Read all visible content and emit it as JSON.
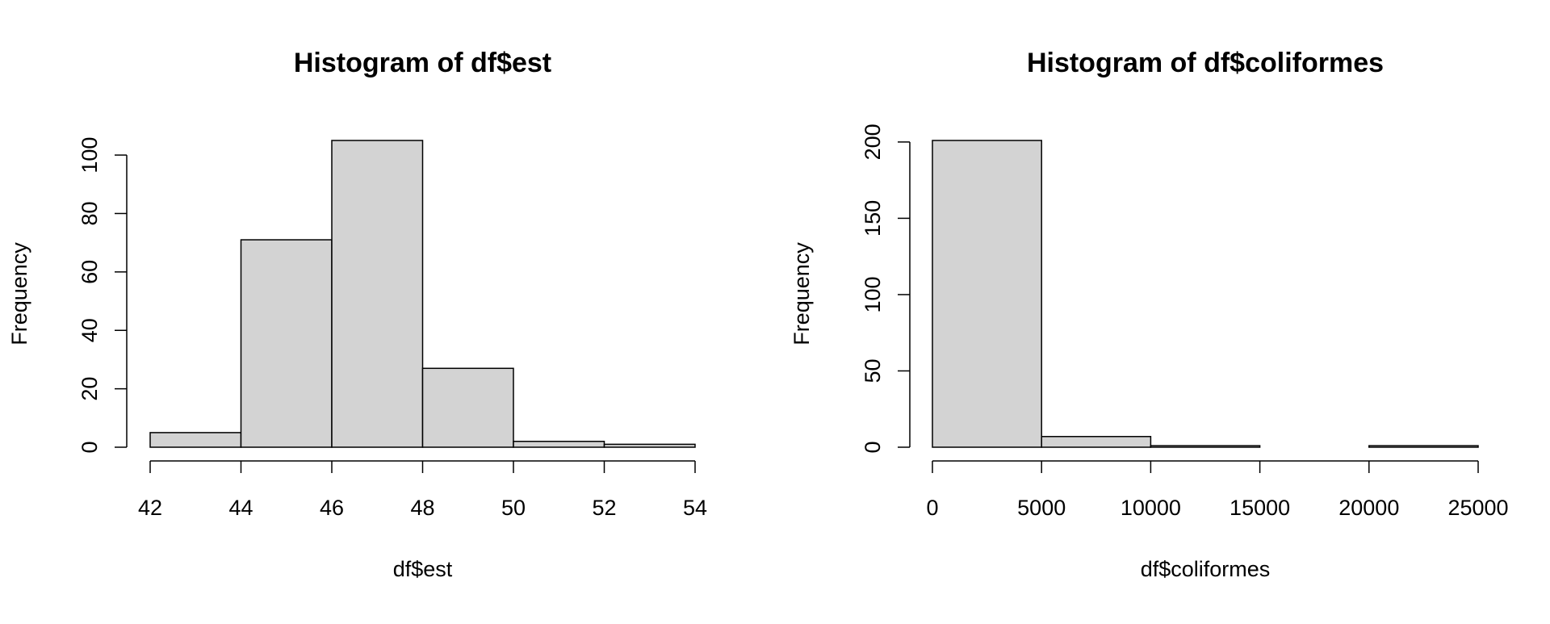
{
  "chart_data": [
    {
      "type": "histogram",
      "title": "Histogram of df$est",
      "xlabel": "df$est",
      "ylabel": "Frequency",
      "bins": [
        42,
        44,
        46,
        48,
        50,
        52,
        54
      ],
      "values": [
        5,
        71,
        105,
        27,
        2,
        1
      ],
      "color": "#d3d3d3",
      "xlim": [
        42,
        54
      ],
      "xticks": [
        42,
        44,
        46,
        48,
        50,
        52,
        54
      ],
      "ylim": [
        0,
        105
      ],
      "yticks": [
        0,
        20,
        40,
        60,
        80,
        100
      ]
    },
    {
      "type": "histogram",
      "title": "Histogram of df$coliformes",
      "xlabel": "df$coliformes",
      "ylabel": "Frequency",
      "bins": [
        0,
        5000,
        10000,
        15000,
        20000,
        25000
      ],
      "values": [
        201,
        7,
        1,
        0,
        1
      ],
      "color": "#d3d3d3",
      "xlim": [
        0,
        25000
      ],
      "xticks": [
        0,
        5000,
        10000,
        15000,
        20000,
        25000
      ],
      "ylim": [
        0,
        201
      ],
      "yticks": [
        0,
        50,
        100,
        150,
        200
      ]
    }
  ]
}
